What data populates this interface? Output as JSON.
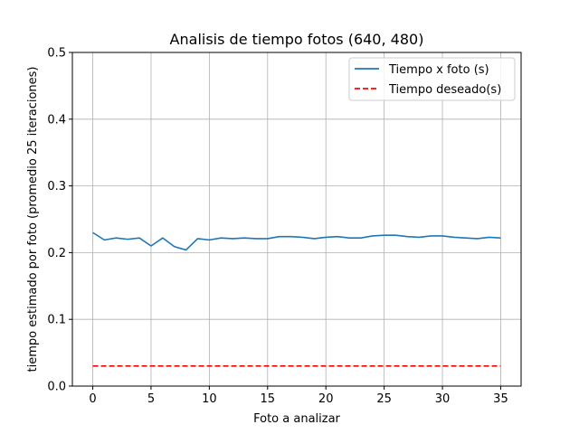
{
  "chart_data": {
    "type": "line",
    "title": "Analisis de tiempo fotos (640, 480)",
    "xlabel": "Foto a analizar",
    "ylabel": "tiempo estimado por foto (promedio 25 iteraciones)",
    "xlim": [
      -1.75,
      36.75
    ],
    "ylim": [
      0,
      0.5
    ],
    "x_ticks": [
      0,
      5,
      10,
      15,
      20,
      25,
      30,
      35
    ],
    "x_tick_labels": [
      "0",
      "5",
      "10",
      "15",
      "20",
      "25",
      "30",
      "35"
    ],
    "y_ticks": [
      0.0,
      0.1,
      0.2,
      0.3,
      0.4,
      0.5
    ],
    "y_tick_labels": [
      "0.0",
      "0.1",
      "0.2",
      "0.3",
      "0.4",
      "0.5"
    ],
    "grid": true,
    "legend_position": "top-right",
    "series": [
      {
        "name": "Tiempo x foto (s)",
        "color": "#1f77b4",
        "style": "solid",
        "x": [
          0,
          1,
          2,
          3,
          4,
          5,
          6,
          7,
          8,
          9,
          10,
          11,
          12,
          13,
          14,
          15,
          16,
          17,
          18,
          19,
          20,
          21,
          22,
          23,
          24,
          25,
          26,
          27,
          28,
          29,
          30,
          31,
          32,
          33,
          34,
          35
        ],
        "values": [
          0.23,
          0.219,
          0.222,
          0.22,
          0.222,
          0.21,
          0.222,
          0.209,
          0.204,
          0.221,
          0.219,
          0.222,
          0.221,
          0.222,
          0.221,
          0.221,
          0.224,
          0.224,
          0.223,
          0.221,
          0.223,
          0.224,
          0.222,
          0.222,
          0.225,
          0.226,
          0.226,
          0.224,
          0.223,
          0.225,
          0.225,
          0.223,
          0.222,
          0.221,
          0.223,
          0.222
        ]
      },
      {
        "name": "Tiempo deseado(s)",
        "color": "#ff0000",
        "style": "dashed",
        "x": [
          0,
          35
        ],
        "values": [
          0.03,
          0.03
        ]
      }
    ]
  }
}
